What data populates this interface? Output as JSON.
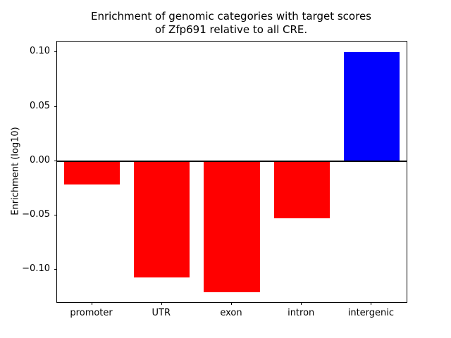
{
  "chart_data": {
    "type": "bar",
    "title": "Enrichment of genomic categories with target scores\nof Zfp691 relative to all CRE.",
    "ylabel": "Enrichment (log10)",
    "xlabel": "",
    "categories": [
      "promoter",
      "UTR",
      "exon",
      "intron",
      "intergenic"
    ],
    "values": [
      -0.022,
      -0.107,
      -0.121,
      -0.053,
      0.1
    ],
    "ylim": [
      -0.13,
      0.11
    ],
    "yticks": [
      -0.1,
      -0.05,
      0.0,
      0.05,
      0.1
    ],
    "ytick_labels": [
      "−0.10",
      "−0.05",
      "0.00",
      "0.05",
      "0.10"
    ],
    "colors": {
      "positive": "#0000ff",
      "negative": "#ff0000",
      "zero_line": "#000000"
    },
    "grid": false,
    "legend_position": "none"
  }
}
